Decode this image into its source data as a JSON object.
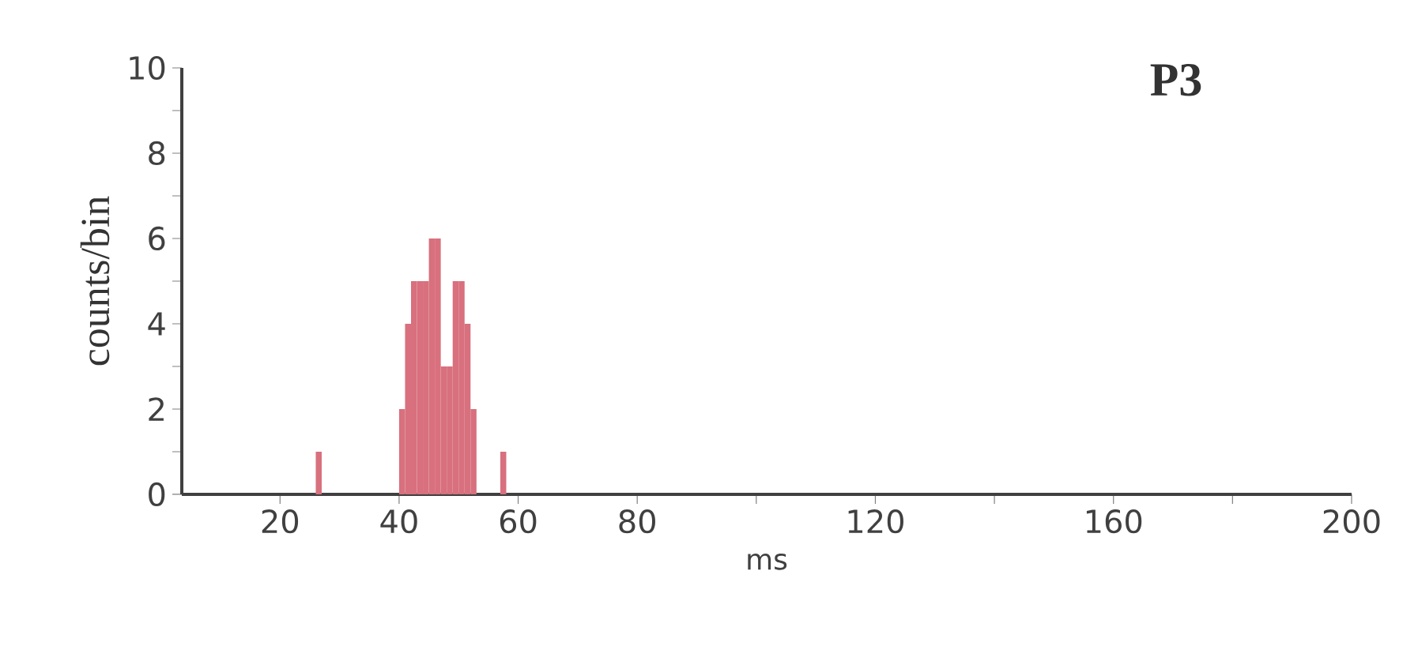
{
  "chart_data": {
    "type": "histogram",
    "title": "P3",
    "xlabel": "ms",
    "ylabel": "counts/bin",
    "color": "#d8707e",
    "bins": [
      26,
      27,
      28,
      29,
      30,
      31,
      32,
      33,
      34,
      35,
      36,
      37,
      38,
      39,
      40,
      41,
      42,
      43,
      44,
      45,
      46,
      47,
      48,
      49,
      50,
      51,
      52,
      53,
      54,
      55,
      56,
      57,
      58
    ],
    "values": [
      1,
      0,
      0,
      0,
      0,
      0,
      0,
      0,
      0,
      0,
      0,
      0,
      0,
      0,
      2,
      4,
      5,
      5,
      5,
      6,
      6,
      3,
      3,
      5,
      5,
      4,
      2,
      0,
      0,
      0,
      0,
      1
    ],
    "xlim": [
      3.5,
      200
    ],
    "ylim": [
      0,
      10
    ],
    "xticks": [
      20,
      40,
      60,
      80,
      {
        "value": 100,
        "label": null
      },
      120,
      {
        "value": 140,
        "label": null
      },
      160,
      {
        "value": 180,
        "label": null
      },
      200
    ],
    "yticks": [
      0,
      {
        "value": 1,
        "label": null
      },
      2,
      {
        "value": 3,
        "label": null
      },
      4,
      {
        "value": 5,
        "label": null
      },
      6,
      {
        "value": 7,
        "label": null
      },
      8,
      {
        "value": 9,
        "label": null
      },
      10
    ],
    "grid": false
  }
}
